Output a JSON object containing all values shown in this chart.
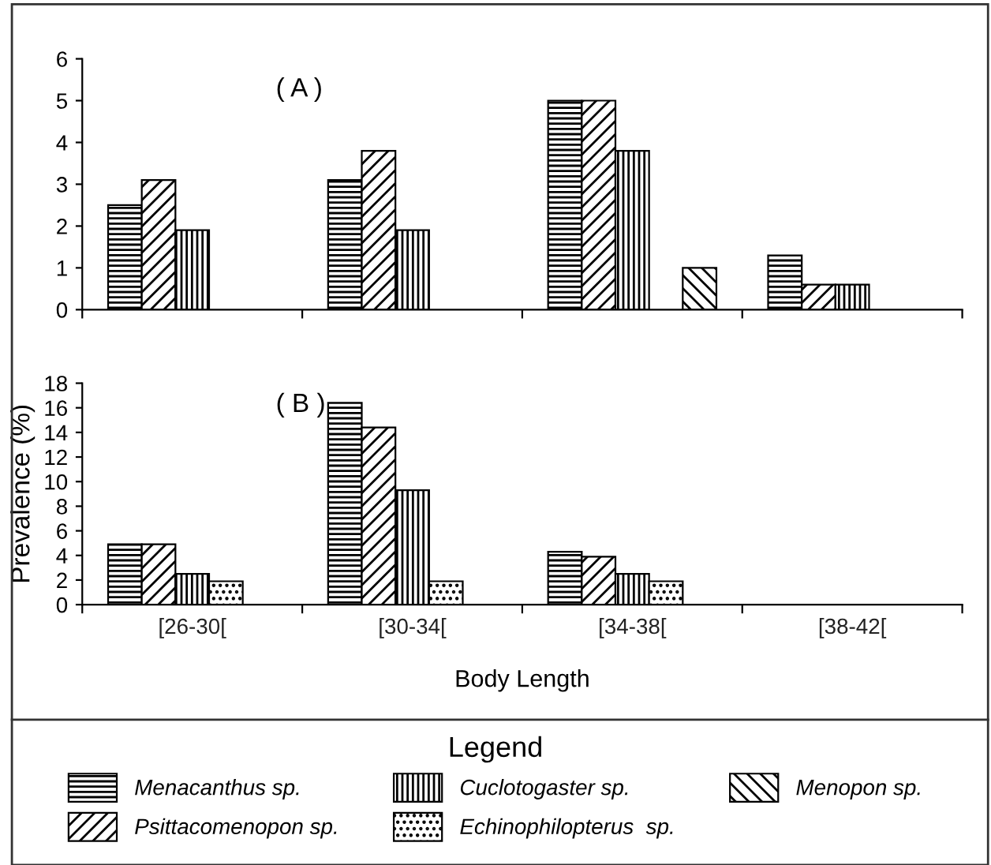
{
  "chart_data": [
    {
      "type": "bar",
      "categories": [
        null,
        null,
        null,
        null
      ],
      "ylim": [
        0,
        6
      ],
      "yticks": [
        0,
        1,
        2,
        3,
        4,
        5,
        6
      ],
      "annotations": [
        "( A )"
      ],
      "series": [
        {
          "color": "#000000",
          "values": [
            2.5,
            3.1,
            5.0,
            1.3
          ]
        },
        {
          "color": "#000000",
          "values": [
            3.1,
            3.8,
            5.0,
            0.6
          ]
        },
        {
          "color": "#000000",
          "values": [
            1.9,
            1.9,
            3.8,
            0.6
          ]
        },
        {
          "color": "#000000",
          "values": [
            null,
            null,
            null,
            null
          ]
        },
        {
          "color": "#000000",
          "values": [
            null,
            null,
            1.0,
            null
          ]
        }
      ]
    },
    {
      "type": "bar",
      "categories": [
        "[26-30[",
        "[30-34[",
        "[34-38[",
        "[38-42["
      ],
      "ylim": [
        0,
        18
      ],
      "yticks": [
        0,
        2,
        4,
        6,
        8,
        10,
        12,
        14,
        16,
        18
      ],
      "xlabel": "Body Length",
      "ylabel": "Prevalence (%)",
      "annotations": [
        "( B )"
      ],
      "legend": "bottom",
      "legend_title": "Legend",
      "series": [
        {
          "name": "Menacanthus sp.",
          "color": "#000000",
          "values": [
            4.9,
            16.4,
            4.3,
            null
          ]
        },
        {
          "name": "Psittacomenopon sp.",
          "color": "#000000",
          "values": [
            4.9,
            14.4,
            3.9,
            null
          ]
        },
        {
          "name": "Cuclotogaster sp.",
          "color": "#000000",
          "values": [
            2.5,
            9.3,
            2.5,
            null
          ]
        },
        {
          "name": "Echinophilopterus  sp.",
          "color": "#000000",
          "values": [
            1.9,
            1.9,
            1.9,
            null
          ]
        },
        {
          "name": "Menopon sp.",
          "color": "#000000",
          "values": [
            null,
            null,
            null,
            null
          ]
        }
      ]
    }
  ]
}
